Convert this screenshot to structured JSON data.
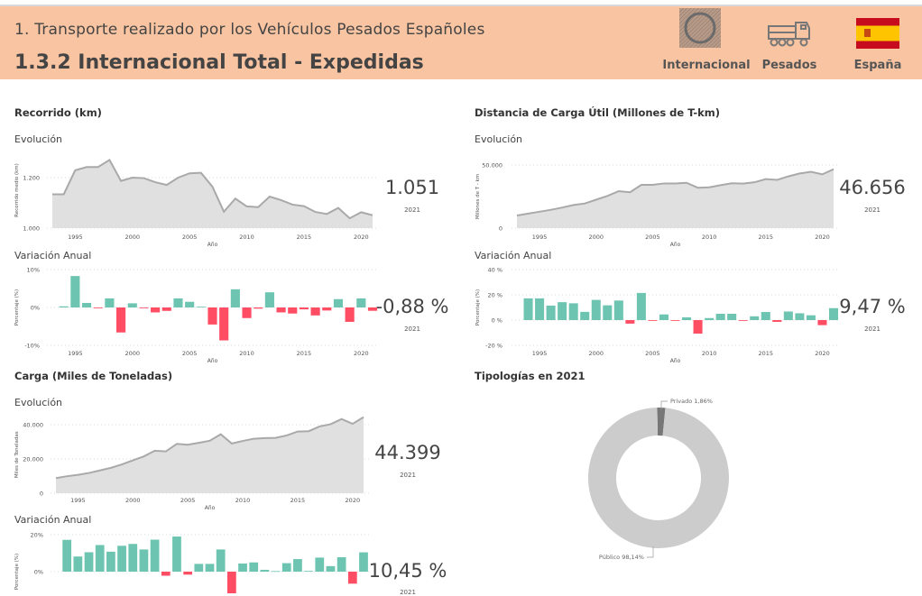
{
  "header": {
    "title": "1. Transporte realizado por los Vehículos Pesados Españoles",
    "subtitle": "1.3.2 Internacional Total - Expedidas",
    "badges": [
      {
        "label": "Internacional",
        "icon": "circle-icon"
      },
      {
        "label": "Pesados",
        "icon": "truck-icon"
      },
      {
        "label": "España",
        "icon": "spain-flag-icon"
      }
    ]
  },
  "colors": {
    "header_bg": "#f9c4a1",
    "area_fill": "#e0e0e0",
    "area_line": "#a9a9a9",
    "positive": "#6dc5b1",
    "negative": "#ff4d64",
    "donut_main": "#cccccc",
    "donut_minor": "#777777"
  },
  "sections": {
    "recorrido": {
      "title": "Recorrido (km)",
      "evol_label": "Evolución",
      "var_label": "Variación Anual",
      "value": "1.051",
      "value_year": "2021",
      "var_value": "-0,88 %",
      "var_year": "2021"
    },
    "distancia": {
      "title": "Distancia de Carga Útil (Millones de T-km)",
      "evol_label": "Evolución",
      "var_label": "Variación Anual",
      "value": "46.656",
      "value_year": "2021",
      "var_value": "9,47 %",
      "var_year": "2021"
    },
    "carga": {
      "title": "Carga (Miles de Toneladas)",
      "evol_label": "Evolución",
      "var_label": "Variación Anual",
      "value": "44.399",
      "value_year": "2021",
      "var_value": "10,45 %",
      "var_year": "2021"
    },
    "tipologias": {
      "title": "Tipologías en 2021"
    }
  },
  "chart_data": [
    {
      "id": "recorrido_evol",
      "type": "area",
      "xlabel": "Año",
      "ylabel": "Recorrido medio (km)",
      "ylim": [
        1000,
        1300
      ],
      "xticks": [
        "1995",
        "2000",
        "2005",
        "2010",
        "2015",
        "2020"
      ],
      "yticks": [
        {
          "v": 1000,
          "label": "1.000"
        },
        {
          "v": 1200,
          "label": "1.200"
        }
      ],
      "grid": true,
      "x": [
        1993,
        1994,
        1995,
        1996,
        1997,
        1998,
        1999,
        2000,
        2001,
        2002,
        2003,
        2004,
        2005,
        2006,
        2007,
        2008,
        2009,
        2010,
        2011,
        2012,
        2013,
        2014,
        2015,
        2016,
        2017,
        2018,
        2019,
        2020,
        2021
      ],
      "values": [
        1134,
        1134,
        1229,
        1242,
        1242,
        1270,
        1187,
        1200,
        1198,
        1182,
        1171,
        1200,
        1217,
        1219,
        1164,
        1065,
        1117,
        1086,
        1083,
        1125,
        1111,
        1093,
        1087,
        1064,
        1056,
        1080,
        1039,
        1063,
        1051
      ]
    },
    {
      "id": "recorrido_var",
      "type": "bar",
      "xlabel": "Año",
      "ylabel": "Porcentaje (%)",
      "ylim": [
        -10,
        10
      ],
      "xticks": [
        "1995",
        "2000",
        "2005",
        "2010",
        "2015",
        "2020"
      ],
      "yticks": [
        {
          "v": 10,
          "label": "10%"
        },
        {
          "v": 0,
          "label": "0%"
        },
        {
          "v": -10,
          "label": "-10%"
        }
      ],
      "grid": true,
      "x": [
        1994,
        1995,
        1996,
        1997,
        1998,
        1999,
        2000,
        2001,
        2002,
        2003,
        2004,
        2005,
        2006,
        2007,
        2008,
        2009,
        2010,
        2011,
        2012,
        2013,
        2014,
        2015,
        2016,
        2017,
        2018,
        2019,
        2020,
        2021
      ],
      "values": [
        0.3,
        8.3,
        1.2,
        -0.2,
        2.4,
        -6.6,
        1.1,
        -0.2,
        -1.3,
        -0.9,
        2.4,
        1.5,
        0.2,
        -4.5,
        -8.7,
        4.8,
        -2.8,
        -0.3,
        4.0,
        -1.3,
        -1.6,
        -0.5,
        -2.1,
        -0.8,
        2.2,
        -3.8,
        2.4,
        -0.88
      ]
    },
    {
      "id": "distancia_evol",
      "type": "area",
      "xlabel": "Año",
      "ylabel": "Millones de T - km",
      "ylim": [
        0,
        50000
      ],
      "xticks": [
        "1995",
        "2000",
        "2005",
        "2010",
        "2015",
        "2020"
      ],
      "yticks": [
        {
          "v": 0,
          "label": "0"
        },
        {
          "v": 50000,
          "label": "50.000"
        }
      ],
      "grid": true,
      "x": [
        1993,
        1994,
        1995,
        1996,
        1997,
        1998,
        1999,
        2000,
        2001,
        2002,
        2003,
        2004,
        2005,
        2006,
        2007,
        2008,
        2009,
        2010,
        2011,
        2012,
        2013,
        2014,
        2015,
        2016,
        2017,
        2018,
        2019,
        2020,
        2021
      ],
      "values": [
        10000,
        11500,
        13000,
        14500,
        16300,
        18300,
        19500,
        22500,
        25500,
        29300,
        28400,
        34300,
        34300,
        35400,
        35400,
        35900,
        32000,
        32300,
        34000,
        35500,
        35300,
        36300,
        38800,
        38200,
        41000,
        43300,
        44600,
        42600,
        46656
      ]
    },
    {
      "id": "distancia_var",
      "type": "bar",
      "xlabel": "Año",
      "ylabel": "Porcentaje (%)",
      "ylim": [
        -20,
        40
      ],
      "xticks": [
        "1995",
        "2000",
        "2005",
        "2010",
        "2015",
        "2020"
      ],
      "yticks": [
        {
          "v": 40,
          "label": "40 %"
        },
        {
          "v": 20,
          "label": "20 %"
        },
        {
          "v": 0,
          "label": "0 %"
        },
        {
          "v": -20,
          "label": "-20 %"
        }
      ],
      "grid": true,
      "x": [
        1994,
        1995,
        1996,
        1997,
        1998,
        1999,
        2000,
        2001,
        2002,
        2003,
        2004,
        2005,
        2006,
        2007,
        2008,
        2009,
        2010,
        2011,
        2012,
        2013,
        2014,
        2015,
        2016,
        2017,
        2018,
        2019,
        2020,
        2021
      ],
      "values": [
        17.2,
        17.2,
        11.5,
        14.2,
        13.3,
        6.5,
        16.0,
        11.7,
        15.5,
        -2.8,
        21.5,
        -0.6,
        4.5,
        -0.6,
        2.2,
        -10.7,
        1.6,
        5.0,
        5.0,
        -0.6,
        3.0,
        6.4,
        -1.4,
        6.8,
        5.4,
        3.8,
        -4.0,
        9.47
      ]
    },
    {
      "id": "carga_evol",
      "type": "area",
      "xlabel": "Año",
      "ylabel": "Miles de Toneladas",
      "ylim": [
        0,
        45000
      ],
      "xticks": [
        "1995",
        "2000",
        "2005",
        "2010",
        "2015",
        "2020"
      ],
      "yticks": [
        {
          "v": 0,
          "label": "0"
        },
        {
          "v": 20000,
          "label": "20.000"
        },
        {
          "v": 40000,
          "label": "40.000"
        }
      ],
      "grid": true,
      "x": [
        1993,
        1994,
        1995,
        1996,
        1997,
        1998,
        1999,
        2000,
        2001,
        2002,
        2003,
        2004,
        2005,
        2006,
        2007,
        2008,
        2009,
        2010,
        2011,
        2012,
        2013,
        2014,
        2015,
        2016,
        2017,
        2018,
        2019,
        2020,
        2021
      ],
      "values": [
        8800,
        9900,
        10700,
        11800,
        13300,
        14800,
        16800,
        19200,
        21500,
        24800,
        24400,
        28800,
        28300,
        29400,
        30600,
        34400,
        29000,
        30500,
        31800,
        32200,
        32300,
        33700,
        36000,
        36200,
        39000,
        40300,
        43300,
        40500,
        44399
      ]
    },
    {
      "id": "carga_var",
      "type": "bar",
      "xlabel": "Año",
      "ylabel": "Porcentaje (%)",
      "ylim": [
        -20,
        20
      ],
      "xticks": [],
      "yticks": [
        {
          "v": 20,
          "label": "20%"
        },
        {
          "v": 0,
          "label": "0%"
        }
      ],
      "grid": true,
      "x": [
        1994,
        1995,
        1996,
        1997,
        1998,
        1999,
        2000,
        2001,
        2002,
        2003,
        2004,
        2005,
        2006,
        2007,
        2008,
        2009,
        2010,
        2011,
        2012,
        2013,
        2014,
        2015,
        2016,
        2017,
        2018,
        2019,
        2020,
        2021
      ],
      "values": [
        17.2,
        8.2,
        10.5,
        14.4,
        10.8,
        14.0,
        15.0,
        12.0,
        17.3,
        -2.2,
        19.0,
        -1.6,
        4.2,
        4.2,
        12.0,
        -12.0,
        4.4,
        5.0,
        1.0,
        0.3,
        4.6,
        6.8,
        0.4,
        7.6,
        3.0,
        7.8,
        -6.5,
        10.45
      ]
    },
    {
      "id": "tipologias",
      "type": "pie",
      "donut": true,
      "slices": [
        {
          "name": "Privado",
          "value": 1.86,
          "label": "Privado 1,86%"
        },
        {
          "name": "Público",
          "value": 98.14,
          "label": "Público 98,14%"
        }
      ]
    }
  ]
}
